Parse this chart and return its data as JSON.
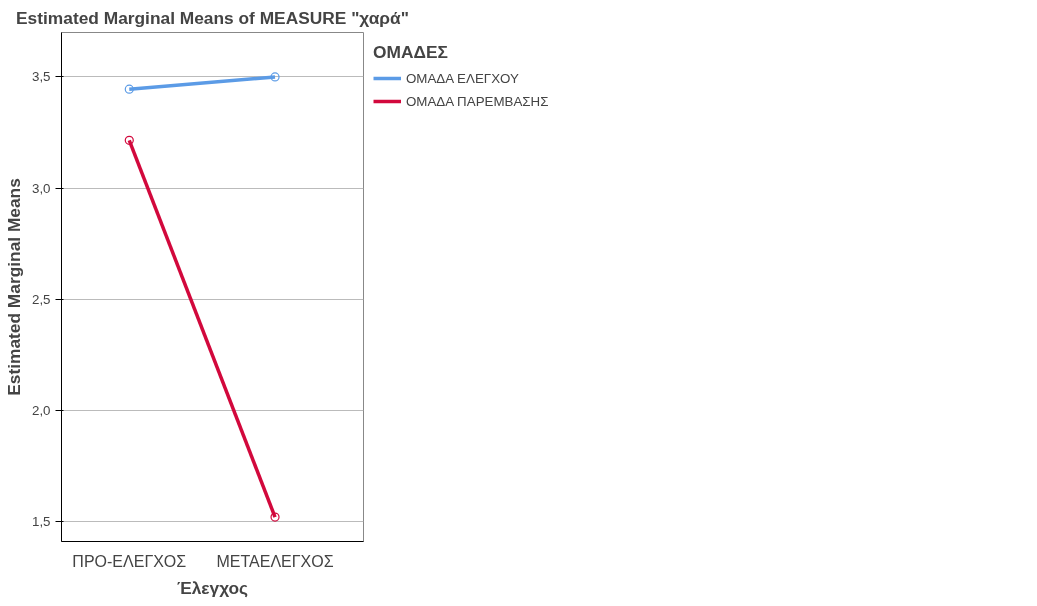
{
  "chart_data": {
    "type": "line",
    "title": "Estimated Marginal Means of MEASURE \"χαρά\"",
    "xlabel": "Έλεγχος",
    "ylabel": "Estimated Marginal Means",
    "legend_title": "ΟΜΑΔΕΣ",
    "categories": [
      "ΠΡΟ-ΕΛΕΓΧΟΣ",
      "ΜΕΤΑΕΛΕΓΧΟΣ"
    ],
    "series": [
      {
        "name": "ΟΜΑΔΑ ΕΛΕΓΧΟΥ",
        "color": "#5b9be6",
        "values": [
          3.445,
          3.5
        ]
      },
      {
        "name": "ΟΜΑΔΑ ΠΑΡΕΜΒΑΣΗΣ",
        "color": "#d2083c",
        "values": [
          3.215,
          1.52
        ]
      }
    ],
    "ylim": [
      1.41,
      3.7
    ],
    "yticks": [
      {
        "value": 1.5,
        "label": "1,5"
      },
      {
        "value": 2.0,
        "label": "2,0"
      },
      {
        "value": 2.5,
        "label": "2,5"
      },
      {
        "value": 3.0,
        "label": "3,0"
      },
      {
        "value": 3.5,
        "label": "3,5"
      }
    ],
    "grid": "y",
    "legend": "right",
    "marker": "circle",
    "line_style": "solid"
  }
}
